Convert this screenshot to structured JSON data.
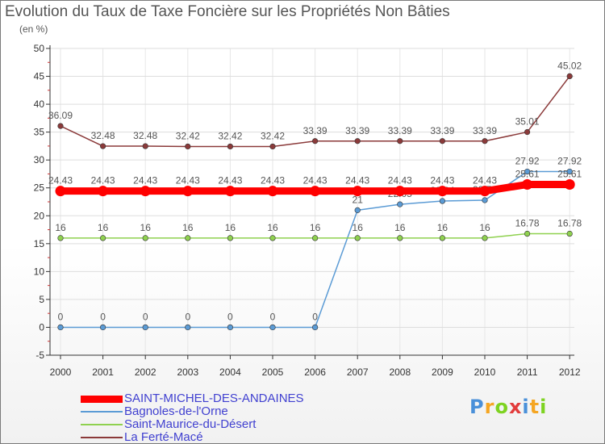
{
  "chart_data": {
    "type": "line",
    "title": "Evolution du Taux de Taxe Foncière sur les Propriétés Non Bâties",
    "ylabel": "(en %)",
    "ylim": [
      -5,
      50
    ],
    "yticks": [
      -5,
      0,
      5,
      10,
      15,
      20,
      25,
      30,
      35,
      40,
      45,
      50
    ],
    "categories": [
      "2000",
      "2001",
      "2002",
      "2003",
      "2004",
      "2005",
      "2006",
      "2007",
      "2008",
      "2009",
      "2010",
      "2011",
      "2012"
    ],
    "series": [
      {
        "name": "SAINT-MICHEL-DES-ANDAINES",
        "color": "#ff0000",
        "values": [
          24.43,
          24.43,
          24.43,
          24.43,
          24.43,
          24.43,
          24.43,
          24.43,
          24.43,
          24.43,
          24.43,
          25.61,
          25.61
        ],
        "labels": [
          "24.43",
          "24.43",
          "24.43",
          "24.43",
          "24.43",
          "24.43",
          "24.43",
          "24.43",
          "24.43",
          "24.43",
          "24.43",
          "25.61",
          "25.61"
        ]
      },
      {
        "name": "Bagnoles-de-l'Orne",
        "color": "#5b9bd5",
        "values": [
          0,
          0,
          0,
          0,
          0,
          0,
          0,
          21,
          22.05,
          22.64,
          22.79,
          27.92,
          27.92
        ],
        "labels": [
          "0",
          "0",
          "0",
          "0",
          "0",
          "0",
          "0",
          "21",
          "22.05",
          "22.64",
          "22.79",
          "27.92",
          "27.92"
        ]
      },
      {
        "name": "Saint-Maurice-du-Désert",
        "color": "#8fd14f",
        "values": [
          16,
          16,
          16,
          16,
          16,
          16,
          16,
          16,
          16,
          16,
          16,
          16.78,
          16.78
        ],
        "labels": [
          "16",
          "16",
          "16",
          "16",
          "16",
          "16",
          "16",
          "16",
          "16",
          "16",
          "16",
          "16.78",
          "16.78"
        ]
      },
      {
        "name": "La Ferté-Macé",
        "color": "#8b3a3a",
        "values": [
          36.09,
          32.48,
          32.48,
          32.42,
          32.42,
          32.42,
          33.39,
          33.39,
          33.39,
          33.39,
          33.39,
          35.01,
          45.02
        ],
        "labels": [
          "36.09",
          "32.48",
          "32.48",
          "32.42",
          "32.42",
          "32.42",
          "33.39",
          "33.39",
          "33.39",
          "33.39",
          "33.39",
          "35.01",
          "45.02"
        ]
      }
    ]
  },
  "logo": {
    "text": "Proxiti",
    "colors": [
      "#4a90d9",
      "#f5a623",
      "#7ed321",
      "#e23c3c",
      "#4a90d9",
      "#f5a623",
      "#7ed321"
    ]
  }
}
